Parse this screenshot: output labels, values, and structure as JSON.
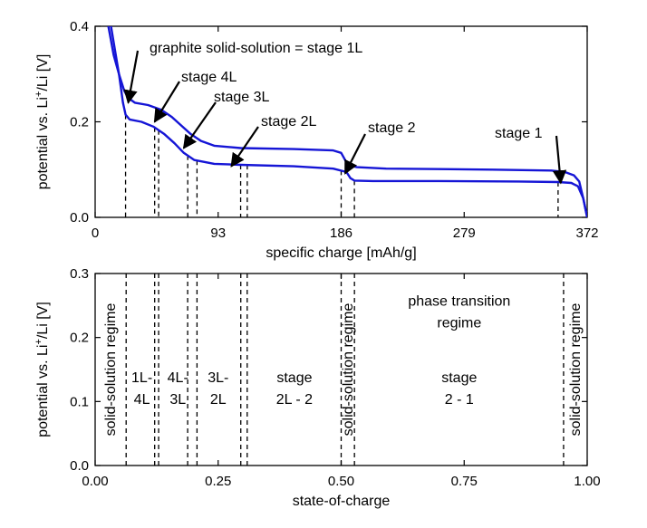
{
  "chart_data": [
    {
      "type": "line",
      "xlabel": "specific charge [mAh/g]",
      "ylabel_main": "potential vs. Li",
      "ylabel_sup": "+",
      "ylabel_tail": "/Li [V]",
      "xlim": [
        0,
        372
      ],
      "ylim": [
        0,
        0.4
      ],
      "xticks": [
        0,
        93,
        186,
        279,
        372
      ],
      "yticks": [
        0.0,
        0.2,
        0.4
      ],
      "xtick_labels": [
        "0",
        "93",
        "186",
        "279",
        "372"
      ],
      "ytick_labels": [
        "0.0",
        "0.2",
        "0.4"
      ],
      "line_color": "#1515d6",
      "series": [
        {
          "values": [
            [
              10,
              0.4
            ],
            [
              14,
              0.34
            ],
            [
              18,
              0.3
            ],
            [
              22,
              0.265
            ],
            [
              25,
              0.25
            ],
            [
              30,
              0.24
            ],
            [
              40,
              0.235
            ],
            [
              50,
              0.225
            ],
            [
              58,
              0.21
            ],
            [
              66,
              0.19
            ],
            [
              72,
              0.175
            ],
            [
              80,
              0.16
            ],
            [
              90,
              0.15
            ],
            [
              110,
              0.145
            ],
            [
              150,
              0.143
            ],
            [
              180,
              0.14
            ],
            [
              186,
              0.135
            ],
            [
              190,
              0.115
            ],
            [
              193,
              0.108
            ],
            [
              198,
              0.105
            ],
            [
              220,
              0.102
            ],
            [
              260,
              0.101
            ],
            [
              300,
              0.1
            ],
            [
              345,
              0.098
            ],
            [
              355,
              0.095
            ],
            [
              362,
              0.088
            ],
            [
              366,
              0.075
            ],
            [
              369,
              0.04
            ],
            [
              372,
              0.0
            ]
          ]
        },
        {
          "values": [
            [
              12,
              0.4
            ],
            [
              15,
              0.35
            ],
            [
              18,
              0.3
            ],
            [
              21,
              0.24
            ],
            [
              23,
              0.215
            ],
            [
              26,
              0.205
            ],
            [
              35,
              0.2
            ],
            [
              44,
              0.19
            ],
            [
              52,
              0.175
            ],
            [
              60,
              0.155
            ],
            [
              67,
              0.135
            ],
            [
              75,
              0.12
            ],
            [
              90,
              0.112
            ],
            [
              110,
              0.11
            ],
            [
              150,
              0.107
            ],
            [
              180,
              0.102
            ],
            [
              190,
              0.095
            ],
            [
              193,
              0.082
            ],
            [
              196,
              0.077
            ],
            [
              210,
              0.076
            ],
            [
              260,
              0.076
            ],
            [
              320,
              0.075
            ],
            [
              350,
              0.074
            ],
            [
              360,
              0.072
            ],
            [
              365,
              0.065
            ],
            [
              369,
              0.04
            ],
            [
              372,
              0.0
            ]
          ]
        }
      ],
      "dashed_x": [
        23,
        45,
        48,
        70,
        77,
        110,
        115,
        186,
        196,
        350
      ],
      "annotations": [
        {
          "text": "graphite solid-solution = stage 1L",
          "x": 25,
          "y": 0.24
        },
        {
          "text": "stage 4L",
          "x": 45,
          "y": 0.2
        },
        {
          "text": "stage 3L",
          "x": 67,
          "y": 0.145
        },
        {
          "text": "stage 2L",
          "x": 103,
          "y": 0.107
        },
        {
          "text": "stage 2",
          "x": 189,
          "y": 0.092
        },
        {
          "text": "stage 1",
          "x": 352,
          "y": 0.072
        }
      ]
    },
    {
      "type": "line",
      "xlabel": "state-of-charge",
      "ylabel_main": "potential vs. Li",
      "ylabel_sup": "+",
      "ylabel_tail": "/Li [V]",
      "xlim": [
        0,
        1
      ],
      "ylim": [
        0,
        0.3
      ],
      "xticks": [
        0,
        0.25,
        0.5,
        0.75,
        1.0
      ],
      "yticks": [
        0.0,
        0.1,
        0.2,
        0.3
      ],
      "xtick_labels": [
        "0.00",
        "0.25",
        "0.50",
        "0.75",
        "1.00"
      ],
      "ytick_labels": [
        "0.0",
        "0.1",
        "0.2",
        "0.3"
      ],
      "dashed_x": [
        0.063,
        0.121,
        0.129,
        0.188,
        0.207,
        0.296,
        0.309,
        0.5,
        0.527,
        0.952
      ],
      "regions": [
        {
          "lines": [
            "solid-solution regime"
          ],
          "x": 0.031,
          "y": 0.15,
          "vertical": true
        },
        {
          "lines": [
            "1L-",
            "4L"
          ],
          "x": 0.095,
          "y": 0.13
        },
        {
          "lines": [
            "4L-",
            "3L"
          ],
          "x": 0.168,
          "y": 0.13
        },
        {
          "lines": [
            "3L-",
            "2L"
          ],
          "x": 0.25,
          "y": 0.13
        },
        {
          "lines": [
            "stage",
            "2L - 2"
          ],
          "x": 0.405,
          "y": 0.13
        },
        {
          "lines": [
            "solid-solution regime"
          ],
          "x": 0.514,
          "y": 0.15,
          "vertical": true
        },
        {
          "lines": [
            "phase transition",
            "regime"
          ],
          "x": 0.74,
          "y": 0.25
        },
        {
          "lines": [
            "stage",
            "2 - 1"
          ],
          "x": 0.74,
          "y": 0.13
        },
        {
          "lines": [
            "solid-solution regime"
          ],
          "x": 0.976,
          "y": 0.15,
          "vertical": true
        }
      ]
    }
  ]
}
